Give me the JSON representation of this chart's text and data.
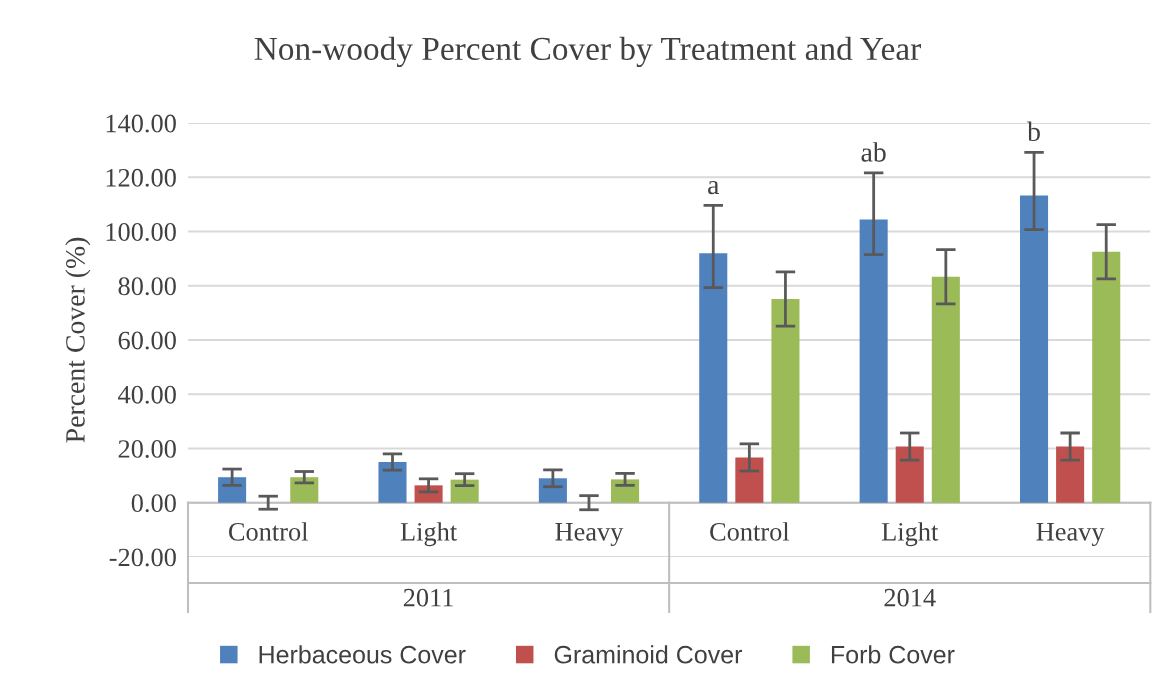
{
  "chart_data": {
    "type": "bar",
    "title": "Non-woody Percent Cover by Treatment and Year",
    "ylabel": "Percent Cover (%)",
    "categories": [
      "Control",
      "Light",
      "Heavy",
      "Control",
      "Light",
      "Heavy"
    ],
    "annotations": [
      "2011",
      "2014"
    ],
    "series": [
      {
        "name": "Herbaceous Cover",
        "color": "#4f81bd",
        "values": [
          9.4,
          15.0,
          9.0,
          92.0,
          104.4,
          113.3
        ],
        "errors": [
          3.0,
          3.0,
          3.1,
          [
            79.3,
            109.6
          ],
          [
            91.5,
            121.6
          ],
          [
            100.7,
            129.2
          ]
        ],
        "value_labels": [
          null,
          null,
          null,
          "a",
          "ab",
          "b"
        ]
      },
      {
        "name": "Graminoid Cover",
        "color": "#c0504d",
        "values": [
          0.0,
          6.4,
          0.0,
          16.7,
          20.7,
          20.7
        ],
        "errors": [
          2.4,
          2.4,
          2.6,
          5.0,
          5.0,
          5.0
        ]
      },
      {
        "name": "Forb Cover",
        "color": "#9bbb59",
        "values": [
          9.4,
          8.5,
          8.6,
          75.1,
          83.3,
          92.5
        ],
        "errors": [
          2.1,
          2.2,
          2.2,
          10.0,
          10.0,
          10.0
        ]
      }
    ],
    "ylim": [
      -20,
      140
    ],
    "yticks": [
      {
        "value": -20,
        "label": "-20.00"
      },
      {
        "value": 0,
        "label": "0.00"
      },
      {
        "value": 20,
        "label": "20.00"
      },
      {
        "value": 40,
        "label": "40.00"
      },
      {
        "value": 60,
        "label": "60.00"
      },
      {
        "value": 80,
        "label": "80.00"
      },
      {
        "value": 100,
        "label": "100.00"
      },
      {
        "value": 120,
        "label": "120.00"
      },
      {
        "value": 140,
        "label": "140.00"
      }
    ],
    "grid": "y",
    "legend": "bottom"
  }
}
